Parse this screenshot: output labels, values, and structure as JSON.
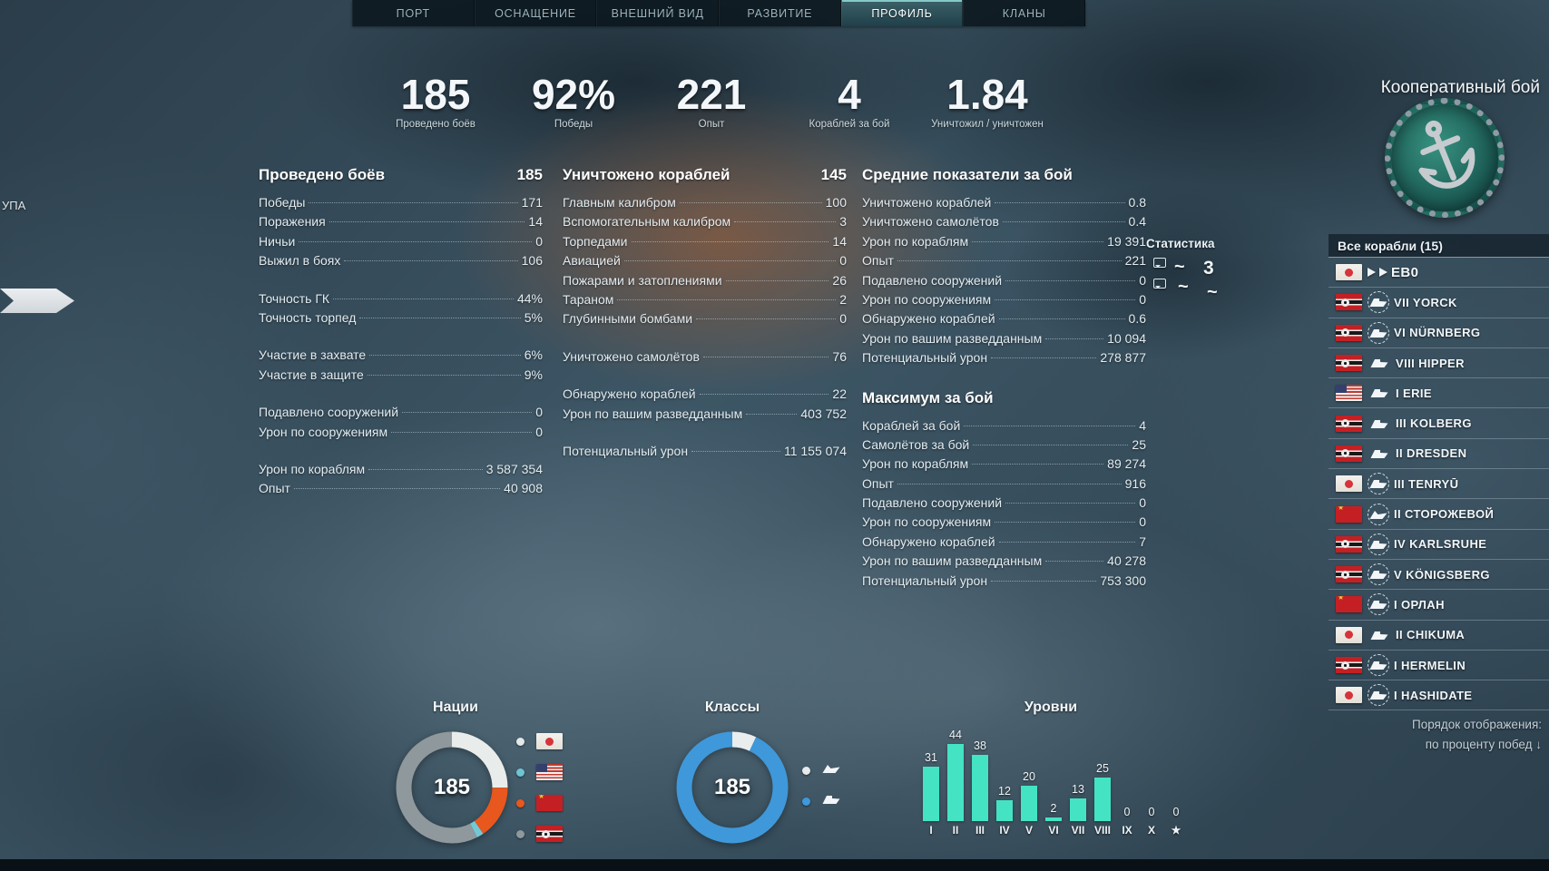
{
  "nav": {
    "tabs": [
      {
        "label": "ПОРТ",
        "active": false
      },
      {
        "label": "ОСНАЩЕНИЕ",
        "active": false
      },
      {
        "label": "ВНЕШНИЙ ВИД",
        "active": false
      },
      {
        "label": "РАЗВИТИЕ",
        "active": false
      },
      {
        "label": "ПРОФИЛЬ",
        "active": true
      },
      {
        "label": "КЛАНЫ",
        "active": false
      }
    ]
  },
  "summary": [
    {
      "value": "185",
      "label": "Проведено боёв"
    },
    {
      "value": "92%",
      "label": "Победы"
    },
    {
      "value": "221",
      "label": "Опыт"
    },
    {
      "value": "4",
      "label": "Кораблей за бой"
    },
    {
      "value": "1.84",
      "label": "Уничтожил / уничтожен"
    }
  ],
  "columns": [
    {
      "header": {
        "label": "Проведено боёв",
        "value": "185"
      },
      "groups": [
        [
          {
            "label": "Победы",
            "value": "171"
          },
          {
            "label": "Поражения",
            "value": "14"
          },
          {
            "label": "Ничьи",
            "value": "0"
          },
          {
            "label": "Выжил в боях",
            "value": "106"
          }
        ],
        [
          {
            "label": "Точность ГК",
            "value": "44%"
          },
          {
            "label": "Точность торпед",
            "value": "5%"
          }
        ],
        [
          {
            "label": "Участие в захвате",
            "value": "6%"
          },
          {
            "label": "Участие в защите",
            "value": "9%"
          }
        ],
        [
          {
            "label": "Подавлено сооружений",
            "value": "0"
          },
          {
            "label": "Урон по сооружениям",
            "value": "0"
          }
        ],
        [
          {
            "label": "Урон по кораблям",
            "value": "3 587 354"
          },
          {
            "label": "Опыт",
            "value": "40 908"
          }
        ]
      ]
    },
    {
      "header": {
        "label": "Уничтожено кораблей",
        "value": "145"
      },
      "groups": [
        [
          {
            "label": "Главным калибром",
            "value": "100"
          },
          {
            "label": "Вспомогательным калибром",
            "value": "3"
          },
          {
            "label": "Торпедами",
            "value": "14"
          },
          {
            "label": "Авиацией",
            "value": "0"
          },
          {
            "label": "Пожарами и затоплениями",
            "value": "26"
          },
          {
            "label": "Тараном",
            "value": "2"
          },
          {
            "label": "Глубинными бомбами",
            "value": "0"
          }
        ],
        [
          {
            "label": "Уничтожено самолётов",
            "value": "76"
          }
        ],
        [
          {
            "label": "Обнаружено кораблей",
            "value": "22"
          },
          {
            "label": "Урон по вашим разведданным",
            "value": "403 752"
          }
        ],
        [
          {
            "label": "Потенциальный урон",
            "value": "11 155 074"
          }
        ]
      ]
    },
    {
      "header": {
        "label": "Средние показатели за бой",
        "value": ""
      },
      "groups": [
        [
          {
            "label": "Уничтожено кораблей",
            "value": "0.8"
          },
          {
            "label": "Уничтожено самолётов",
            "value": "0.4"
          },
          {
            "label": "Урон по кораблям",
            "value": "19 391"
          },
          {
            "label": "Опыт",
            "value": "221"
          },
          {
            "label": "Подавлено сооружений",
            "value": "0"
          },
          {
            "label": "Урон по сооружениям",
            "value": "0"
          },
          {
            "label": "Обнаружено кораблей",
            "value": "0.6"
          },
          {
            "label": "Урон по вашим разведданным",
            "value": "10 094"
          },
          {
            "label": "Потенциальный урон",
            "value": "278 877"
          }
        ]
      ]
    },
    {
      "header": {
        "label": "Максимум за бой",
        "value": ""
      },
      "groups": [
        [
          {
            "label": "Кораблей за бой",
            "value": "4"
          },
          {
            "label": "Самолётов за бой",
            "value": "25"
          },
          {
            "label": "Урон по кораблям",
            "value": "89 274"
          },
          {
            "label": "Опыт",
            "value": "916"
          },
          {
            "label": "Подавлено сооружений",
            "value": "0"
          },
          {
            "label": "Урон по сооружениям",
            "value": "0"
          },
          {
            "label": "Обнаружено кораблей",
            "value": "7"
          },
          {
            "label": "Урон по вашим разведданным",
            "value": "40 278"
          },
          {
            "label": "Потенциальный урон",
            "value": "753 300"
          }
        ]
      ]
    }
  ],
  "battle_type": {
    "title": "Кооперативный бой"
  },
  "sidebar": {
    "stats_label": "Статистика",
    "dropdown_label": "Все корабли (15)",
    "ships": [
      {
        "tier": "",
        "name": "",
        "nation": "japan",
        "class": "cruiser",
        "elite": false,
        "obscured": true,
        "artifact_text": "ЕВ0"
      },
      {
        "tier": "VII",
        "name": "YORCK",
        "nation": "germany",
        "class": "cruiser",
        "elite": true
      },
      {
        "tier": "VI",
        "name": "NÜRNBERG",
        "nation": "germany",
        "class": "cruiser",
        "elite": true
      },
      {
        "tier": "VIII",
        "name": "HIPPER",
        "nation": "germany",
        "class": "cruiser",
        "elite": false
      },
      {
        "tier": "I",
        "name": "ERIE",
        "nation": "usa",
        "class": "cruiser",
        "elite": false
      },
      {
        "tier": "III",
        "name": "KOLBERG",
        "nation": "germany",
        "class": "cruiser",
        "elite": false
      },
      {
        "tier": "II",
        "name": "DRESDEN",
        "nation": "germany",
        "class": "cruiser",
        "elite": false
      },
      {
        "tier": "III",
        "name": "TENRYŪ",
        "nation": "japan",
        "class": "cruiser",
        "elite": true
      },
      {
        "tier": "II",
        "name": "СТОРОЖЕВОЙ",
        "nation": "ussr",
        "class": "destroyer",
        "elite": true
      },
      {
        "tier": "IV",
        "name": "KARLSRUHE",
        "nation": "germany",
        "class": "cruiser",
        "elite": true
      },
      {
        "tier": "V",
        "name": "KÖNIGSBERG",
        "nation": "germany",
        "class": "cruiser",
        "elite": true
      },
      {
        "tier": "I",
        "name": "ОРЛАН",
        "nation": "ussr",
        "class": "cruiser",
        "elite": true
      },
      {
        "tier": "II",
        "name": "CHIKUMA",
        "nation": "japan",
        "class": "cruiser",
        "elite": false
      },
      {
        "tier": "I",
        "name": "HERMELIN",
        "nation": "germany",
        "class": "cruiser",
        "elite": true
      },
      {
        "tier": "I",
        "name": "HASHIDATE",
        "nation": "japan",
        "class": "cruiser",
        "elite": true
      }
    ],
    "sort_label": "Порядок отображения:",
    "sort_value": "по проценту побед",
    "sort_arrow": "↓"
  },
  "chart_data": {
    "nations": {
      "type": "donut",
      "title": "Нации",
      "center_label": "185",
      "segments": [
        {
          "flag": "japan",
          "color": "#e8eceb",
          "fraction": 0.25
        },
        {
          "flag": "ussr",
          "color": "#e8571d",
          "fraction": 0.155
        },
        {
          "flag": "usa",
          "color": "#74c8d6",
          "fraction": 0.02
        },
        {
          "flag": "germany",
          "color": "#8f989c",
          "fraction": 0.575
        }
      ],
      "legend": [
        {
          "flag": "japan",
          "dot": "#e3e8ea"
        },
        {
          "flag": "usa",
          "dot": "#6fc4d4"
        },
        {
          "flag": "ussr",
          "dot": "#e8571d"
        },
        {
          "flag": "germany",
          "dot": "#8f989c"
        }
      ]
    },
    "classes": {
      "type": "donut",
      "title": "Классы",
      "center_label": "185",
      "segments": [
        {
          "class": "destroyer",
          "color": "#e9edee",
          "fraction": 0.07
        },
        {
          "class": "cruiser",
          "color": "#3f98d9",
          "fraction": 0.93
        }
      ],
      "legend": [
        {
          "class": "destroyer",
          "dot": "#e6eaec"
        },
        {
          "class": "cruiser",
          "dot": "#3f98d9"
        }
      ]
    },
    "tiers": {
      "type": "bar",
      "title": "Уровни",
      "categories": [
        "I",
        "II",
        "III",
        "IV",
        "V",
        "VI",
        "VII",
        "VIII",
        "IX",
        "X",
        "★"
      ],
      "values": [
        31,
        44,
        38,
        12,
        20,
        2,
        13,
        25,
        0,
        0,
        0
      ],
      "bar_color": "#44e3c4"
    }
  },
  "artifacts": {
    "left_edge_text": "УПА",
    "cursor_badge": "3",
    "tilde": "~"
  }
}
